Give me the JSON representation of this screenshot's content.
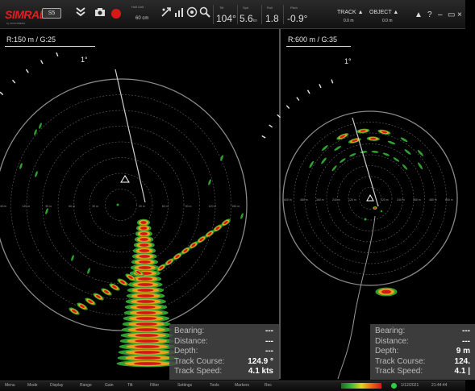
{
  "toolbar": {
    "brand": "SIMRAD",
    "brand_sub": "by KONGSBERG",
    "model_badge": "S5",
    "hull_unit": {
      "label": "Hull Unit",
      "value": "60 cm"
    },
    "tilt": {
      "label": "Tilt",
      "value": "104°"
    },
    "speed": {
      "label": "Spd",
      "value": "5.6",
      "unit": "kn"
    },
    "roll": {
      "label": "Roll",
      "value": "1.8"
    },
    "pitch": {
      "label": "Pitch",
      "value": "-0.9°"
    },
    "track": {
      "label": "TRACK ▲",
      "value": "0.0 m"
    },
    "object": {
      "label": "OBJECT ▲",
      "value": "0.0 m"
    },
    "help_label": "?",
    "min_label": "–",
    "close_label": "×"
  },
  "left_panel": {
    "range_gain": "R:150 m / G:25",
    "bearing_mark": "1°",
    "rings": [
      "150 m",
      "120 m",
      "90 m",
      "60 m",
      "30 m"
    ],
    "info": {
      "bearing_label": "Bearing:",
      "bearing_value": "---",
      "distance_label": "Distance:",
      "distance_value": "---",
      "depth_label": "Depth:",
      "depth_value": "---",
      "course_label": "Track Course:",
      "course_value": "124.9 °",
      "speed_label": "Track Speed:",
      "speed_value": "4.1 kts"
    }
  },
  "right_panel": {
    "range_gain": "R:600 m / G:35",
    "bearing_mark": "1°",
    "rings": [
      "600 m",
      "480 m",
      "360 m",
      "240 m",
      "120 m"
    ],
    "info": {
      "bearing_label": "Bearing:",
      "bearing_value": "---",
      "distance_label": "Distance:",
      "distance_value": "---",
      "depth_label": "Depth:",
      "depth_value": "9 m",
      "course_label": "Track Course:",
      "course_value": "124.",
      "speed_label": "Track Speed:",
      "speed_value": "4.1 |"
    }
  },
  "statusbar": {
    "items": [
      "Menu",
      "Mode",
      "Display",
      "Range",
      "Gain",
      "Tilt",
      "Filter",
      "Settings",
      "Tools",
      "Markers",
      "Rec"
    ],
    "date": "1/12/2021",
    "time": "21:44:44"
  },
  "colors": {
    "echo_strong": "#d41818",
    "echo_mid": "#e8a21c",
    "echo_weak": "#2fa02f",
    "ring": "#555555"
  }
}
